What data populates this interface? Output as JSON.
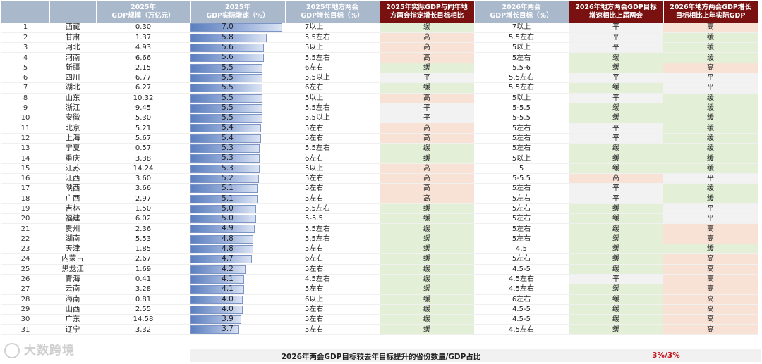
{
  "headers": {
    "rank": "",
    "province": "",
    "gdp": "2025年\nGDP规模（万亿元）",
    "growth": "2025年\nGDP实际增速（%）",
    "target2025": "2025年地方两会\nGDP增长目标（%）",
    "compare2025": "2025年实际GDP与同年地\n方两会指定增长目标相比",
    "target2026": "2026年两会\nGDP增长目标（%）",
    "vsPrev": "2026年地方两会GDP目标\n增速相比上届两会",
    "vsActual": "2026年地方两会GDP增长\n目标相比上年实际GDP"
  },
  "rows": [
    {
      "rank": "1",
      "province": "西藏",
      "gdp": "0.30",
      "growth": "7.0",
      "g": 7.0,
      "t25": "7以上",
      "c25": "缓",
      "t26": "7以上",
      "vp": "平",
      "va": "高"
    },
    {
      "rank": "2",
      "province": "甘肃",
      "gdp": "1.37",
      "growth": "5.8",
      "g": 5.8,
      "t25": "5.5左右",
      "c25": "高",
      "t26": "5.5左右",
      "vp": "平",
      "va": "缓"
    },
    {
      "rank": "3",
      "province": "河北",
      "gdp": "4.93",
      "growth": "5.6",
      "g": 5.6,
      "t25": "5以上",
      "c25": "高",
      "t26": "5以上",
      "vp": "平",
      "va": "缓"
    },
    {
      "rank": "4",
      "province": "河南",
      "gdp": "6.66",
      "growth": "5.6",
      "g": 5.6,
      "t25": "5.5左右",
      "c25": "高",
      "t26": "5左右",
      "vp": "缓",
      "va": "缓"
    },
    {
      "rank": "5",
      "province": "新疆",
      "gdp": "2.15",
      "growth": "5.5",
      "g": 5.5,
      "t25": "6左右",
      "c25": "缓",
      "t26": "5.5-6",
      "vp": "缓",
      "va": "高"
    },
    {
      "rank": "6",
      "province": "四川",
      "gdp": "6.77",
      "growth": "5.5",
      "g": 5.5,
      "t25": "5.5以上",
      "c25": "平",
      "t26": "5.5左右",
      "vp": "平",
      "va": "平"
    },
    {
      "rank": "7",
      "province": "湖北",
      "gdp": "6.27",
      "growth": "5.5",
      "g": 5.5,
      "t25": "6左右",
      "c25": "缓",
      "t26": "5.5左右",
      "vp": "缓",
      "va": "平"
    },
    {
      "rank": "8",
      "province": "山东",
      "gdp": "10.32",
      "growth": "5.5",
      "g": 5.5,
      "t25": "5以上",
      "c25": "高",
      "t26": "5以上",
      "vp": "平",
      "va": "缓"
    },
    {
      "rank": "9",
      "province": "浙江",
      "gdp": "9.45",
      "growth": "5.5",
      "g": 5.5,
      "t25": "5.5左右",
      "c25": "平",
      "t26": "5-5.5",
      "vp": "缓",
      "va": "缓"
    },
    {
      "rank": "10",
      "province": "安徽",
      "gdp": "5.30",
      "growth": "5.5",
      "g": 5.5,
      "t25": "5.5以上",
      "c25": "平",
      "t26": "5-5.5",
      "vp": "缓",
      "va": "缓"
    },
    {
      "rank": "11",
      "province": "北京",
      "gdp": "5.21",
      "growth": "5.4",
      "g": 5.4,
      "t25": "5左右",
      "c25": "高",
      "t26": "5左右",
      "vp": "平",
      "va": "缓"
    },
    {
      "rank": "12",
      "province": "上海",
      "gdp": "5.67",
      "growth": "5.4",
      "g": 5.4,
      "t25": "5左右",
      "c25": "高",
      "t26": "5左右",
      "vp": "平",
      "va": "缓"
    },
    {
      "rank": "13",
      "province": "宁夏",
      "gdp": "0.57",
      "growth": "5.3",
      "g": 5.3,
      "t25": "5.5左右",
      "c25": "缓",
      "t26": "5左右",
      "vp": "缓",
      "va": "缓"
    },
    {
      "rank": "14",
      "province": "重庆",
      "gdp": "3.38",
      "growth": "5.3",
      "g": 5.3,
      "t25": "6左右",
      "c25": "缓",
      "t26": "5以上",
      "vp": "缓",
      "va": "缓"
    },
    {
      "rank": "15",
      "province": "江苏",
      "gdp": "14.24",
      "growth": "5.3",
      "g": 5.3,
      "t25": "5以上",
      "c25": "高",
      "t26": "5",
      "vp": "缓",
      "va": "缓"
    },
    {
      "rank": "16",
      "province": "江西",
      "gdp": "3.60",
      "growth": "5.2",
      "g": 5.2,
      "t25": "5左右",
      "c25": "高",
      "t26": "5-5.5",
      "vp": "高",
      "va": "平"
    },
    {
      "rank": "17",
      "province": "陕西",
      "gdp": "3.66",
      "growth": "5.1",
      "g": 5.1,
      "t25": "5左右",
      "c25": "高",
      "t26": "5左右",
      "vp": "平",
      "va": "缓"
    },
    {
      "rank": "18",
      "province": "广西",
      "gdp": "2.97",
      "growth": "5.1",
      "g": 5.1,
      "t25": "5左右",
      "c25": "高",
      "t26": "5左右",
      "vp": "平",
      "va": "缓"
    },
    {
      "rank": "19",
      "province": "吉林",
      "gdp": "1.50",
      "growth": "5.0",
      "g": 5.0,
      "t25": "5.5左右",
      "c25": "缓",
      "t26": "5左右",
      "vp": "缓",
      "va": "平"
    },
    {
      "rank": "20",
      "province": "福建",
      "gdp": "6.02",
      "growth": "5.0",
      "g": 5.0,
      "t25": "5-5.5",
      "c25": "缓",
      "t26": "5左右",
      "vp": "缓",
      "va": "平"
    },
    {
      "rank": "21",
      "province": "贵州",
      "gdp": "2.36",
      "growth": "4.9",
      "g": 4.9,
      "t25": "5.5左右",
      "c25": "缓",
      "t26": "5左右",
      "vp": "缓",
      "va": "高"
    },
    {
      "rank": "22",
      "province": "湖南",
      "gdp": "5.53",
      "growth": "4.8",
      "g": 4.8,
      "t25": "5.5左右",
      "c25": "缓",
      "t26": "5左右",
      "vp": "缓",
      "va": "高"
    },
    {
      "rank": "23",
      "province": "天津",
      "gdp": "1.85",
      "growth": "4.8",
      "g": 4.8,
      "t25": "5左右",
      "c25": "缓",
      "t26": "4.5",
      "vp": "缓",
      "va": "缓"
    },
    {
      "rank": "24",
      "province": "内蒙古",
      "gdp": "2.67",
      "growth": "4.7",
      "g": 4.7,
      "t25": "6左右",
      "c25": "缓",
      "t26": "5左右",
      "vp": "缓",
      "va": "高"
    },
    {
      "rank": "25",
      "province": "黑龙江",
      "gdp": "1.69",
      "growth": "4.2",
      "g": 4.2,
      "t25": "5左右",
      "c25": "缓",
      "t26": "4.5-5",
      "vp": "缓",
      "va": "高"
    },
    {
      "rank": "26",
      "province": "青海",
      "gdp": "0.41",
      "growth": "4.1",
      "g": 4.1,
      "t25": "4.5左右",
      "c25": "缓",
      "t26": "4.5左右",
      "vp": "平",
      "va": "高"
    },
    {
      "rank": "27",
      "province": "云南",
      "gdp": "3.28",
      "growth": "4.1",
      "g": 4.1,
      "t25": "5左右",
      "c25": "缓",
      "t26": "4.5左右",
      "vp": "缓",
      "va": "高"
    },
    {
      "rank": "28",
      "province": "海南",
      "gdp": "0.81",
      "growth": "4.0",
      "g": 4.0,
      "t25": "6以上",
      "c25": "缓",
      "t26": "6左右",
      "vp": "缓",
      "va": "高"
    },
    {
      "rank": "29",
      "province": "山西",
      "gdp": "2.55",
      "growth": "4.0",
      "g": 4.0,
      "t25": "5左右",
      "c25": "缓",
      "t26": "4.5-5",
      "vp": "缓",
      "va": "高"
    },
    {
      "rank": "30",
      "province": "广东",
      "gdp": "14.58",
      "growth": "3.9",
      "g": 3.9,
      "t25": "5左右",
      "c25": "缓",
      "t26": "4.5-5",
      "vp": "缓",
      "va": "高"
    },
    {
      "rank": "31",
      "province": "辽宁",
      "gdp": "3.32",
      "growth": "3.7",
      "g": 3.7,
      "t25": "5左右",
      "c25": "缓",
      "t26": "4.5左右",
      "vp": "缓",
      "va": "高"
    }
  ],
  "footer": {
    "label": "2026年两会GDP目标较去年目标提升的省份数量/GDP占比",
    "value": "3%/3%"
  },
  "watermark": "大数跨境",
  "colors": {
    "green": "#e4efd8",
    "red": "#f8e2d6",
    "grey": "#f2f2f2",
    "header_blue": "#aab8cc",
    "header_red": "#7a1111"
  }
}
